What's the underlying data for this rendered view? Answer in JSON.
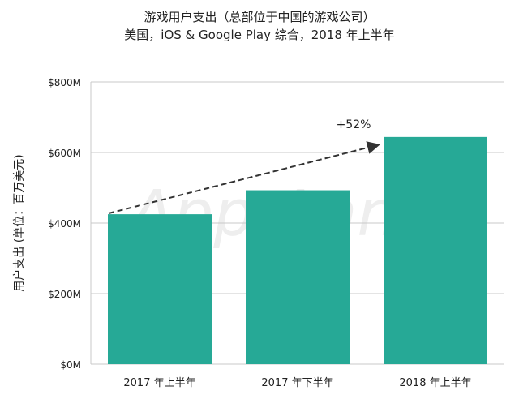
{
  "chart_data": {
    "type": "bar",
    "title": "游戏用户支出（总部位于中国的游戏公司）",
    "subtitle": "美国，iOS & Google Play 综合，2018 年上半年",
    "ylabel": "用户支出 (单位：百万美元)",
    "xlabel": "",
    "categories": [
      "2017 年上半年",
      "2017 年下半年",
      "2018 年上半年"
    ],
    "values": [
      425,
      493,
      644
    ],
    "ylim": [
      0,
      800
    ],
    "yticks": [
      0,
      200,
      400,
      600,
      800
    ],
    "ytick_labels": [
      "$0M",
      "$200M",
      "$400M",
      "$600M",
      "$800M"
    ],
    "grid": true,
    "annotation": "+52%",
    "watermark": "App Annie",
    "bar_color": "#26a996"
  }
}
